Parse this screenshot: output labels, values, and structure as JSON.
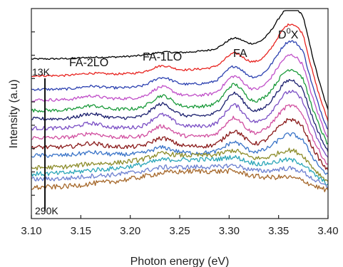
{
  "chart_data": {
    "type": "line",
    "title": "",
    "xlabel": "Photon energy (eV)",
    "ylabel": "Intensity (a.u)",
    "xlim": [
      3.1,
      3.4
    ],
    "ylim": [
      0,
      1
    ],
    "x_ticks": [
      "3.10",
      "3.15",
      "3.20",
      "3.25",
      "3.30",
      "3.35",
      "3.40"
    ],
    "grid": false,
    "legend": "none",
    "annotations": {
      "peak_dox": "D",
      "peak_dox_sup": "0",
      "peak_dox_tail": "X",
      "peak_fa": "FA",
      "peak_fa1lo": "FA-1LO",
      "peak_fa2lo": "FA-2LO",
      "temp_low": "13K",
      "temp_high": "290K"
    },
    "series": [
      {
        "color": "#000000",
        "offset": 0.76,
        "amp": 0.46,
        "dox": 0.16,
        "fa": 0.045,
        "lo1": 0.01,
        "lo2": 0.003,
        "bump": 0.0,
        "noise": 0.004
      },
      {
        "color": "#e8231f",
        "offset": 0.68,
        "amp": 0.4,
        "dox": 0.17,
        "fa": 0.06,
        "lo1": 0.028,
        "lo2": 0.008,
        "bump": 0.0,
        "noise": 0.005
      },
      {
        "color": "#2c41b0",
        "offset": 0.615,
        "amp": 0.34,
        "dox": 0.165,
        "fa": 0.07,
        "lo1": 0.04,
        "lo2": 0.012,
        "bump": 0.0,
        "noise": 0.006
      },
      {
        "color": "#c04fc8",
        "offset": 0.565,
        "amp": 0.28,
        "dox": 0.16,
        "fa": 0.08,
        "lo1": 0.048,
        "lo2": 0.016,
        "bump": 0.0,
        "noise": 0.007
      },
      {
        "color": "#1a9a3a",
        "offset": 0.515,
        "amp": 0.24,
        "dox": 0.15,
        "fa": 0.095,
        "lo1": 0.058,
        "lo2": 0.02,
        "bump": 0.0,
        "noise": 0.008
      },
      {
        "color": "#1b1f6e",
        "offset": 0.475,
        "amp": 0.18,
        "dox": 0.15,
        "fa": 0.1,
        "lo1": 0.062,
        "lo2": 0.022,
        "bump": 0.0,
        "noise": 0.008
      },
      {
        "color": "#7a4ec4",
        "offset": 0.43,
        "amp": 0.13,
        "dox": 0.15,
        "fa": 0.095,
        "lo1": 0.058,
        "lo2": 0.022,
        "bump": 0.0,
        "noise": 0.009
      },
      {
        "color": "#d14fa0",
        "offset": 0.385,
        "amp": 0.09,
        "dox": 0.135,
        "fa": 0.085,
        "lo1": 0.05,
        "lo2": 0.02,
        "bump": 0.0,
        "noise": 0.009
      },
      {
        "color": "#8a1a1a",
        "offset": 0.34,
        "amp": 0.06,
        "dox": 0.12,
        "fa": 0.07,
        "lo1": 0.04,
        "lo2": 0.018,
        "bump": 0.0,
        "noise": 0.01
      },
      {
        "color": "#3a74c8",
        "offset": 0.3,
        "amp": 0.04,
        "dox": 0.09,
        "fa": 0.05,
        "lo1": 0.028,
        "lo2": 0.012,
        "bump": 0.01,
        "noise": 0.01
      },
      {
        "color": "#8c8c2a",
        "offset": 0.24,
        "amp": 0.02,
        "dox": 0.06,
        "fa": 0.03,
        "lo1": 0.018,
        "lo2": 0.008,
        "bump": 0.06,
        "noise": 0.011
      },
      {
        "color": "#2ba6b8",
        "offset": 0.21,
        "amp": 0.02,
        "dox": 0.04,
        "fa": 0.02,
        "lo1": 0.01,
        "lo2": 0.005,
        "bump": 0.07,
        "noise": 0.011
      },
      {
        "color": "#6b7fd0",
        "offset": 0.185,
        "amp": 0.01,
        "dox": 0.03,
        "fa": 0.015,
        "lo1": 0.008,
        "lo2": 0.004,
        "bump": 0.06,
        "noise": 0.011
      },
      {
        "color": "#a5672a",
        "offset": 0.145,
        "amp": 0.01,
        "dox": 0.02,
        "fa": 0.01,
        "lo1": 0.005,
        "lo2": 0.003,
        "bump": 0.08,
        "noise": 0.012
      }
    ]
  }
}
